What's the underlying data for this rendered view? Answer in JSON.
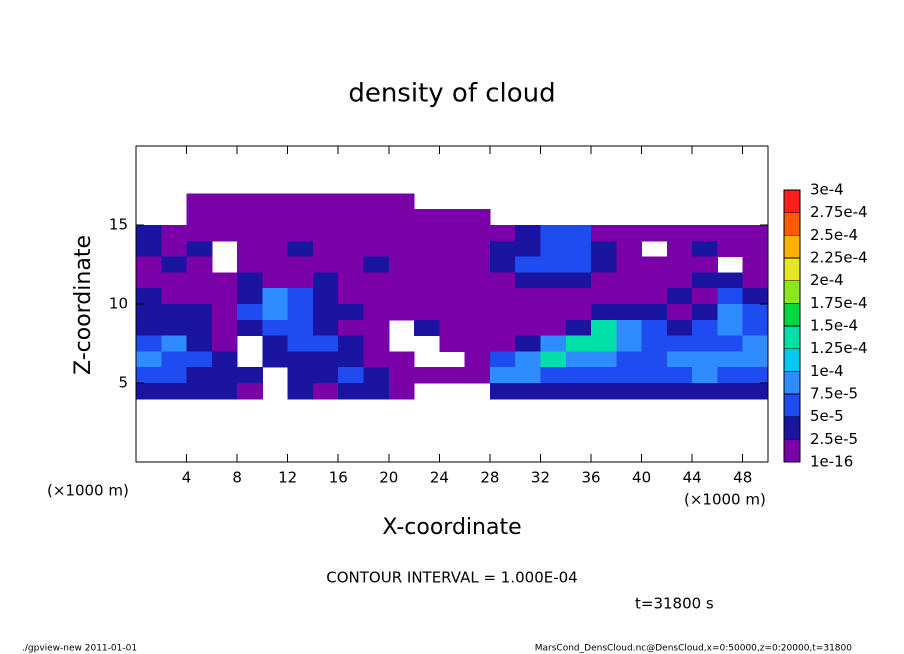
{
  "chart_data": {
    "type": "heatmap",
    "title": "density of cloud",
    "x_label": "X-coordinate",
    "y_label": "Z-coordinate",
    "x_unit_left": "(×1000 m)",
    "x_unit_right": "(×1000 m)",
    "contour_note": "CONTOUR INTERVAL = 1.000E-04",
    "time_note": "t=31800 s",
    "footer_left": "./gpview-new   2011-01-01",
    "footer_right": "MarsCond_DensCloud.nc@DensCloud,x=0:50000,z=0:20000,t=31800",
    "xlim": [
      0,
      50
    ],
    "ylim": [
      0,
      20
    ],
    "xticks": [
      4,
      8,
      12,
      16,
      20,
      24,
      28,
      32,
      36,
      40,
      44,
      48
    ],
    "yticks": [
      5,
      10,
      15
    ],
    "x": [
      1,
      3,
      5,
      7,
      9,
      11,
      13,
      15,
      17,
      19,
      21,
      23,
      25,
      27,
      29,
      31,
      33,
      35,
      37,
      39,
      41,
      43,
      45,
      47,
      49
    ],
    "y": [
      16.5,
      15.5,
      14.5,
      13.5,
      12.5,
      11.5,
      10.5,
      9.5,
      8.5,
      7.5,
      6.5,
      5.5,
      4.5
    ],
    "z": [
      [
        null,
        null,
        1e-05,
        1e-05,
        1e-05,
        1e-05,
        1e-05,
        1e-05,
        1e-05,
        1e-05,
        1e-05,
        null,
        null,
        null,
        null,
        null,
        null,
        null,
        null,
        null,
        null,
        null,
        null,
        null,
        null
      ],
      [
        null,
        null,
        1e-05,
        1e-05,
        1e-05,
        1e-05,
        1e-05,
        1e-05,
        1e-05,
        1e-05,
        1e-05,
        1e-05,
        1e-05,
        1e-05,
        null,
        null,
        null,
        null,
        null,
        null,
        null,
        null,
        null,
        null,
        null
      ],
      [
        3e-05,
        1e-05,
        1e-05,
        1e-05,
        1e-05,
        1e-05,
        1e-05,
        1e-05,
        1e-05,
        1e-05,
        1e-05,
        1e-05,
        1e-05,
        1e-05,
        1e-05,
        3e-05,
        6e-05,
        6e-05,
        1e-05,
        1e-05,
        1e-05,
        1e-05,
        1e-05,
        1e-05,
        1e-05
      ],
      [
        3e-05,
        1e-05,
        3e-05,
        null,
        1e-05,
        1e-05,
        3e-05,
        1e-05,
        1e-05,
        1e-05,
        1e-05,
        1e-05,
        1e-05,
        1e-05,
        3e-05,
        3e-05,
        6e-05,
        6e-05,
        3e-05,
        1e-05,
        null,
        1e-05,
        3e-05,
        1e-05,
        1e-05
      ],
      [
        1e-05,
        3e-05,
        1e-05,
        null,
        1e-05,
        1e-05,
        1e-05,
        1e-05,
        1e-05,
        3e-05,
        1e-05,
        1e-05,
        1e-05,
        1e-05,
        3e-05,
        6e-05,
        6e-05,
        6e-05,
        3e-05,
        1e-05,
        1e-05,
        1e-05,
        1e-05,
        null,
        1e-05
      ],
      [
        1e-05,
        1e-05,
        1e-05,
        1e-05,
        3e-05,
        1e-05,
        1e-05,
        3e-05,
        1e-05,
        1e-05,
        1e-05,
        1e-05,
        1e-05,
        1e-05,
        1e-05,
        3e-05,
        3e-05,
        3e-05,
        1e-05,
        1e-05,
        1e-05,
        1e-05,
        3e-05,
        3e-05,
        1e-05
      ],
      [
        3e-05,
        1e-05,
        1e-05,
        1e-05,
        3e-05,
        9e-05,
        6e-05,
        3e-05,
        1e-05,
        1e-05,
        1e-05,
        1e-05,
        1e-05,
        1e-05,
        1e-05,
        1e-05,
        1e-05,
        1e-05,
        1e-05,
        1e-05,
        1e-05,
        3e-05,
        1e-05,
        6e-05,
        3e-05
      ],
      [
        3e-05,
        3e-05,
        3e-05,
        1e-05,
        6e-05,
        9e-05,
        6e-05,
        3e-05,
        3e-05,
        1e-05,
        1e-05,
        1e-05,
        1e-05,
        1e-05,
        1e-05,
        1e-05,
        1e-05,
        1e-05,
        3e-05,
        3e-05,
        3e-05,
        1e-05,
        3e-05,
        9e-05,
        6e-05
      ],
      [
        3e-05,
        3e-05,
        3e-05,
        1e-05,
        3e-05,
        6e-05,
        6e-05,
        3e-05,
        1e-05,
        1e-05,
        null,
        3e-05,
        1e-05,
        1e-05,
        1e-05,
        1e-05,
        1e-05,
        3e-05,
        0.00013,
        9e-05,
        6e-05,
        3e-05,
        6e-05,
        9e-05,
        6e-05
      ],
      [
        6e-05,
        9e-05,
        3e-05,
        1e-05,
        null,
        3e-05,
        6e-05,
        6e-05,
        3e-05,
        1e-05,
        null,
        null,
        1e-05,
        1e-05,
        1e-05,
        3e-05,
        9e-05,
        0.00013,
        0.00013,
        9e-05,
        6e-05,
        6e-05,
        6e-05,
        6e-05,
        9e-05
      ],
      [
        9e-05,
        6e-05,
        6e-05,
        3e-05,
        null,
        3e-05,
        3e-05,
        3e-05,
        3e-05,
        1e-05,
        1e-05,
        null,
        null,
        1e-05,
        6e-05,
        9e-05,
        0.00013,
        9e-05,
        9e-05,
        6e-05,
        6e-05,
        9e-05,
        9e-05,
        9e-05,
        9e-05
      ],
      [
        6e-05,
        6e-05,
        3e-05,
        3e-05,
        3e-05,
        null,
        3e-05,
        3e-05,
        6e-05,
        3e-05,
        1e-05,
        1e-05,
        1e-05,
        1e-05,
        9e-05,
        9e-05,
        6e-05,
        6e-05,
        6e-05,
        6e-05,
        6e-05,
        6e-05,
        9e-05,
        6e-05,
        6e-05
      ],
      [
        3e-05,
        3e-05,
        3e-05,
        3e-05,
        1e-05,
        null,
        3e-05,
        1e-05,
        3e-05,
        3e-05,
        1e-05,
        null,
        null,
        null,
        3e-05,
        3e-05,
        3e-05,
        3e-05,
        3e-05,
        3e-05,
        3e-05,
        3e-05,
        3e-05,
        3e-05,
        3e-05
      ]
    ],
    "levels": [
      {
        "value": 1e-16,
        "label": "1e-16"
      },
      {
        "value": 2.5e-05,
        "label": "2.5e-5"
      },
      {
        "value": 5e-05,
        "label": "5e-5"
      },
      {
        "value": 7.5e-05,
        "label": "7.5e-5"
      },
      {
        "value": 0.0001,
        "label": "1e-4"
      },
      {
        "value": 0.000125,
        "label": "1.25e-4"
      },
      {
        "value": 0.00015,
        "label": "1.5e-4"
      },
      {
        "value": 0.000175,
        "label": "1.75e-4"
      },
      {
        "value": 0.0002,
        "label": "2e-4"
      },
      {
        "value": 0.000225,
        "label": "2.25e-4"
      },
      {
        "value": 0.00025,
        "label": "2.5e-4"
      },
      {
        "value": 0.000275,
        "label": "2.75e-4"
      },
      {
        "value": 0.0003,
        "label": "3e-4"
      }
    ],
    "colors": [
      "#7a00a8",
      "#1a14a0",
      "#1e4cf0",
      "#2e8cff",
      "#00c8f0",
      "#00e0a8",
      "#00d840",
      "#8ce61e",
      "#e6e628",
      "#ffb000",
      "#ff5a00",
      "#ff1e1e",
      "#ff8c8c"
    ]
  }
}
